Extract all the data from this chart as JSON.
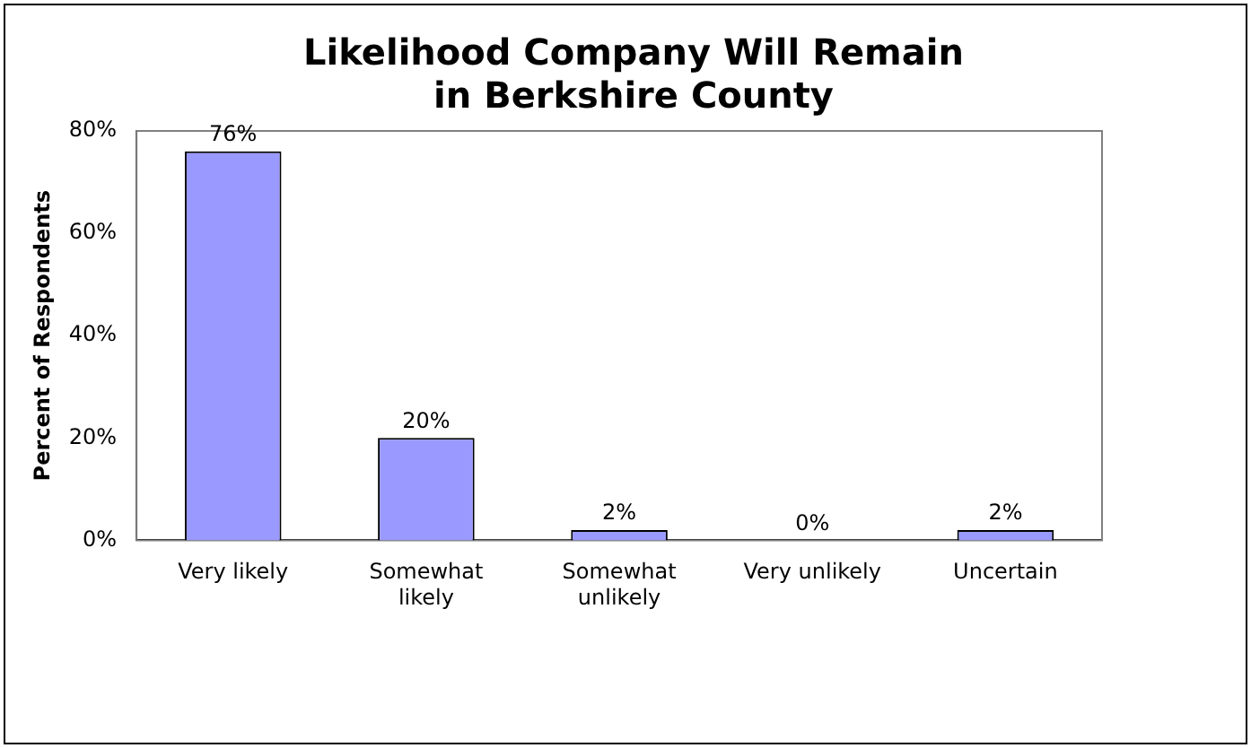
{
  "chart_data": {
    "type": "bar",
    "title": "Likelihood Company Will Remain in Berkshire County",
    "ylabel": "Percent of Respondents",
    "categories": [
      "Very likely",
      "Somewhat likely",
      "Somewhat unlikely",
      "Very unlikely",
      "Uncertain"
    ],
    "values": [
      76,
      20,
      2,
      0,
      2
    ],
    "color": "#9999ff",
    "value_labels": [
      "76%",
      "20%",
      "2%",
      "0%",
      "2%"
    ],
    "ylim": [
      0,
      80
    ],
    "yticks": [
      {
        "value": 0,
        "label": "0%"
      },
      {
        "value": 20,
        "label": "20%"
      },
      {
        "value": 40,
        "label": "40%"
      },
      {
        "value": 60,
        "label": "60%"
      },
      {
        "value": 80,
        "label": "80%"
      }
    ],
    "grid": false,
    "legend": false
  }
}
